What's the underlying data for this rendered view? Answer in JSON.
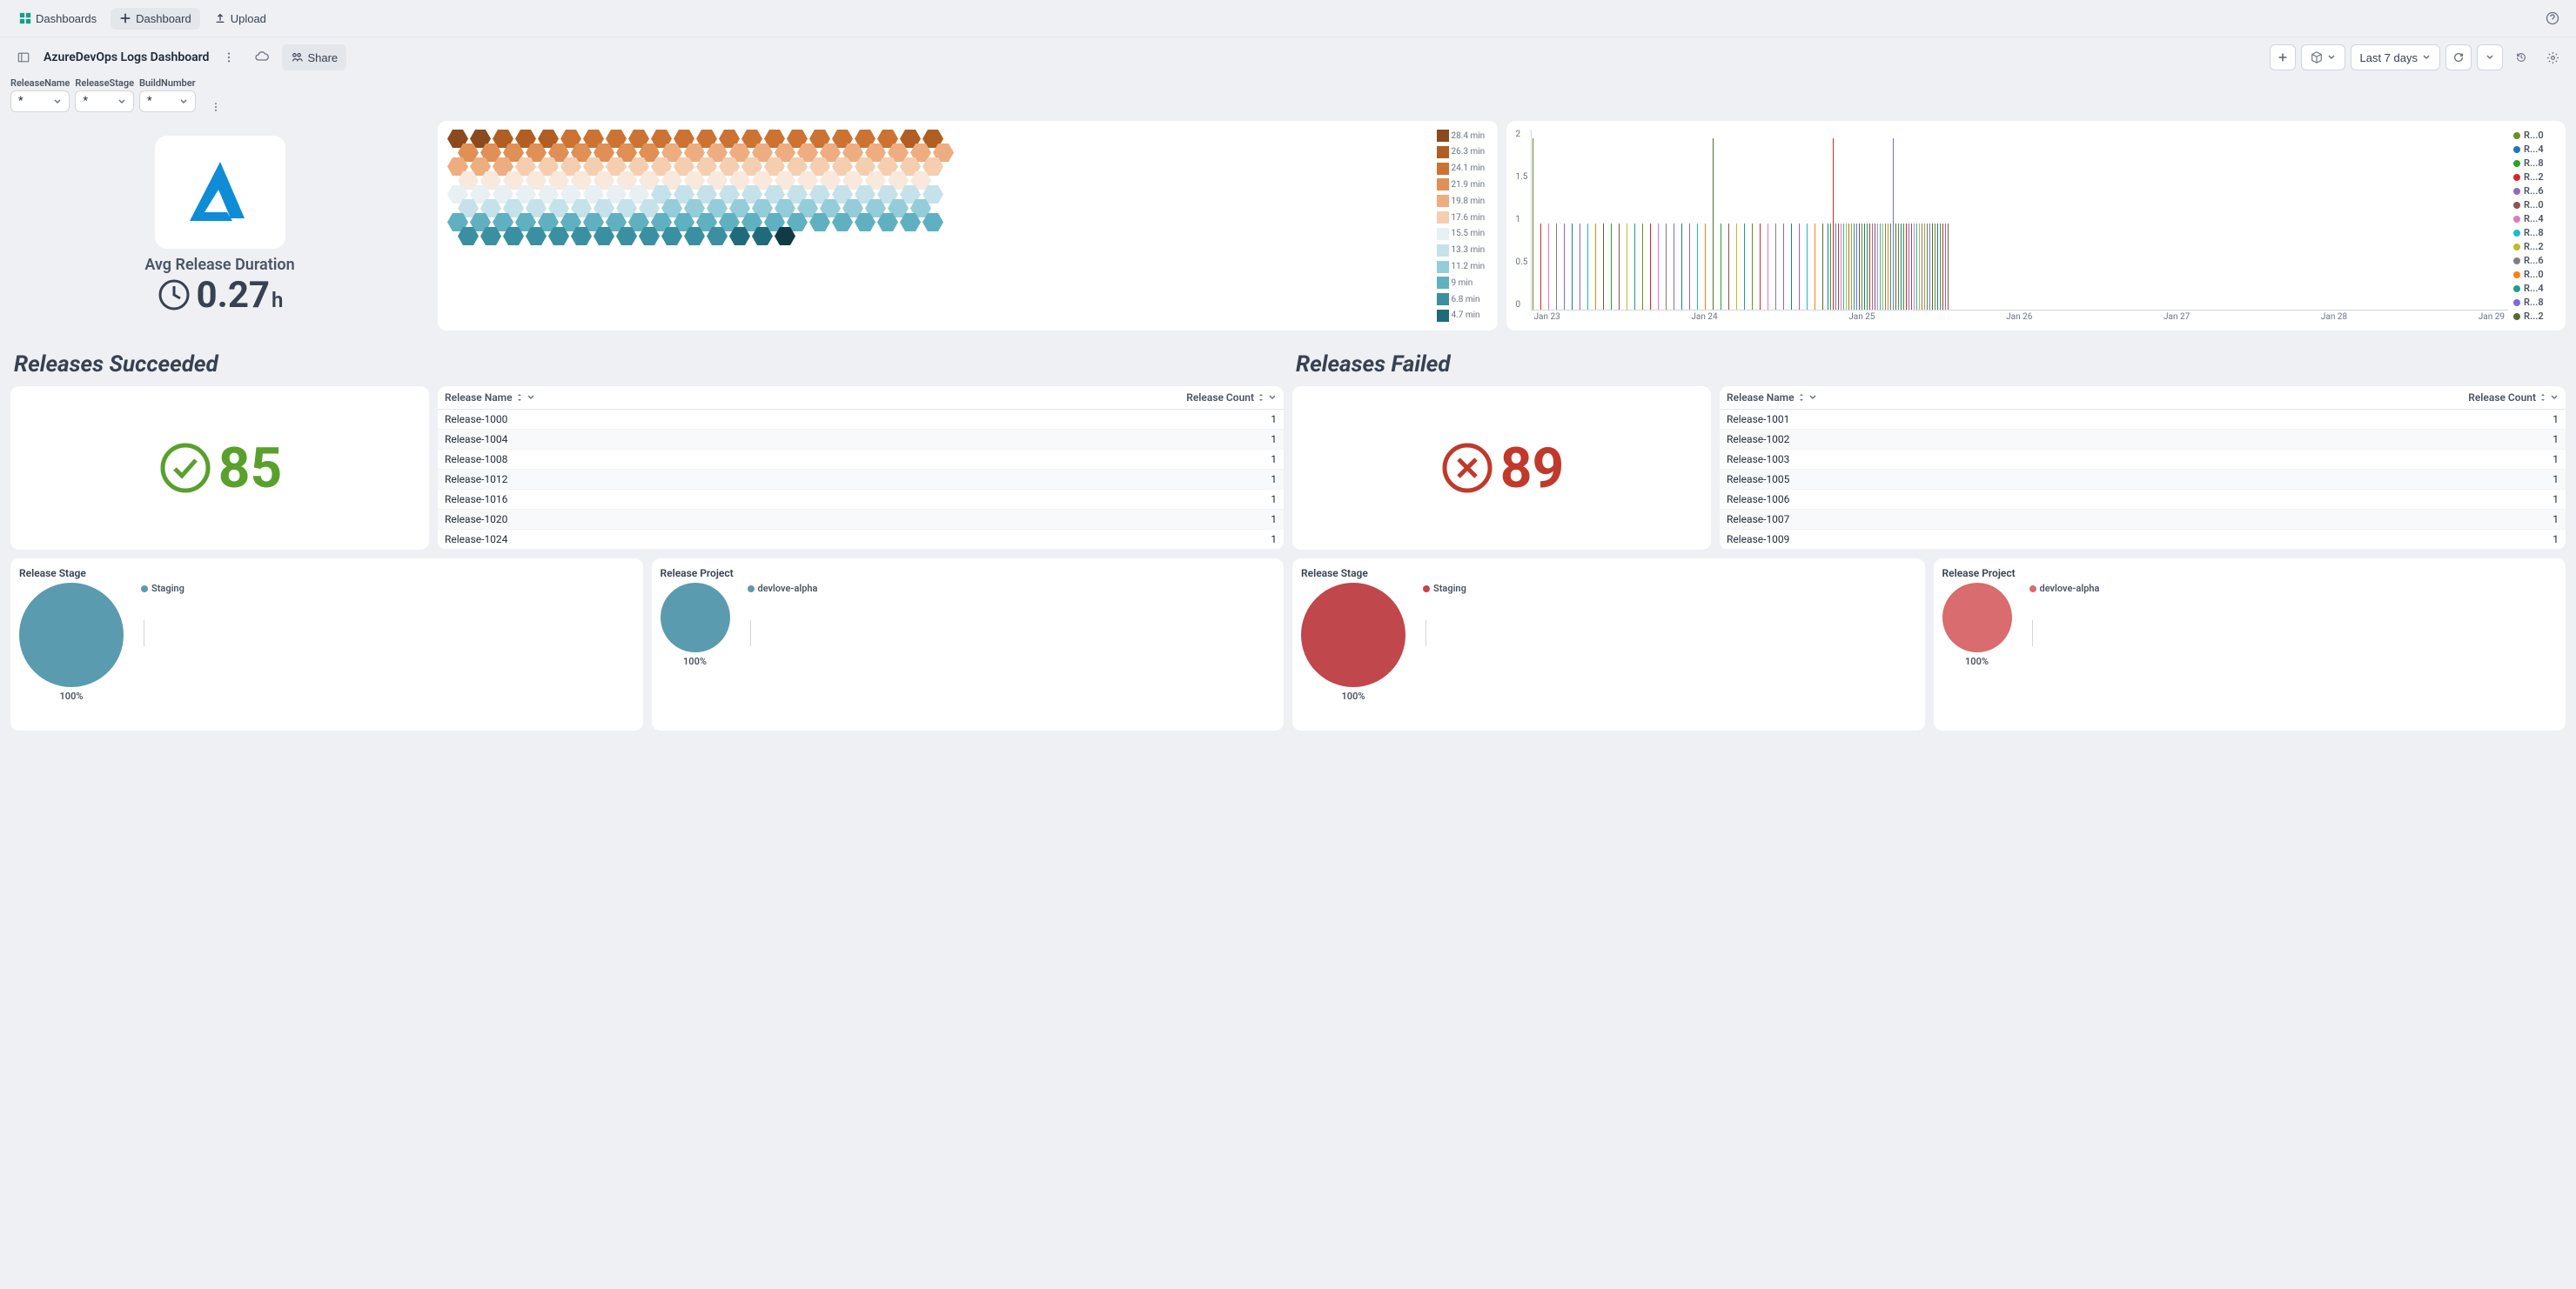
{
  "topbar": {
    "dashboards": "Dashboards",
    "addDashboard": "Dashboard",
    "upload": "Upload"
  },
  "subbar": {
    "title": "AzureDevOps Logs Dashboard",
    "share": "Share",
    "timeRange": "Last 7 days"
  },
  "filters": [
    {
      "label": "ReleaseName",
      "value": "*"
    },
    {
      "label": "ReleaseStage",
      "value": "*"
    },
    {
      "label": "BuildNumber",
      "value": "*"
    }
  ],
  "avgDuration": {
    "label": "Avg Release Duration",
    "value": "0.27",
    "unit": "h"
  },
  "hexScale": [
    {
      "c": "#8a4a1d",
      "t": "28.4 min"
    },
    {
      "c": "#b05e23",
      "t": "26.3 min"
    },
    {
      "c": "#cc7333",
      "t": "24.1 min"
    },
    {
      "c": "#e08f55",
      "t": "21.9 min"
    },
    {
      "c": "#eead80",
      "t": "19.8 min"
    },
    {
      "c": "#f5ceb0",
      "t": "17.6 min"
    },
    {
      "c": "#e8f0f4",
      "t": "15.5 min"
    },
    {
      "c": "#c5e2ea",
      "t": "13.3 min"
    },
    {
      "c": "#94cdd9",
      "t": "11.2 min"
    },
    {
      "c": "#5fb0c0",
      "t": "9 min"
    },
    {
      "c": "#3a8fa0",
      "t": "6.8 min"
    },
    {
      "c": "#1f6b7c",
      "t": "4.7 min"
    }
  ],
  "hexRows": [
    [
      "#8a4a1d",
      "#8a4a1d",
      "#b05e23",
      "#b05e23",
      "#b05e23",
      "#cc7333",
      "#cc7333",
      "#cc7333",
      "#cc7333",
      "#cc7333",
      "#cc7333",
      "#cc7333",
      "#cc7333",
      "#cc7333",
      "#cc7333",
      "#cc7333",
      "#cc7333",
      "#cc7333",
      "#cc7333",
      "#cc7333",
      "#b05e23",
      "#b05e23"
    ],
    [
      "#e08f55",
      "#e08f55",
      "#e08f55",
      "#e08f55",
      "#e08f55",
      "#e08f55",
      "#e08f55",
      "#e08f55",
      "#e08f55",
      "#eead80",
      "#eead80",
      "#eead80",
      "#eead80",
      "#eead80",
      "#eead80",
      "#eead80",
      "#eead80",
      "#eead80",
      "#eead80",
      "#eead80",
      "#eead80",
      "#eead80"
    ],
    [
      "#eead80",
      "#eead80",
      "#eead80",
      "#f5ceb0",
      "#f5ceb0",
      "#f5ceb0",
      "#f5ceb0",
      "#f5ceb0",
      "#f5ceb0",
      "#f5ceb0",
      "#f5ceb0",
      "#f5ceb0",
      "#f5ceb0",
      "#f5ceb0",
      "#f5ceb0",
      "#f5ceb0",
      "#f5ceb0",
      "#f5ceb0",
      "#f5ceb0",
      "#f5ceb0",
      "#f5ceb0",
      "#f5ceb0"
    ],
    [
      "#f8e9dc",
      "#f8e9dc",
      "#f8e9dc",
      "#f8e9dc",
      "#f8e9dc",
      "#f8e9dc",
      "#f8e9dc",
      "#f8e9dc",
      "#f8e9dc",
      "#f8e9dc",
      "#f8e9dc",
      "#f8e9dc",
      "#f8e9dc",
      "#f8e9dc",
      "#f8e9dc",
      "#f8e9dc",
      "#f8e9dc",
      "#f8e9dc",
      "#f8e9dc",
      "#f8e9dc",
      "#f8e9dc"
    ],
    [
      "#e8f0f4",
      "#e8f0f4",
      "#e8f0f4",
      "#e8f0f4",
      "#e8f0f4",
      "#e8f0f4",
      "#e8f0f4",
      "#e8f0f4",
      "#e8f0f4",
      "#c5e2ea",
      "#c5e2ea",
      "#c5e2ea",
      "#c5e2ea",
      "#c5e2ea",
      "#c5e2ea",
      "#c5e2ea",
      "#c5e2ea",
      "#c5e2ea",
      "#c5e2ea",
      "#c5e2ea",
      "#c5e2ea",
      "#c5e2ea"
    ],
    [
      "#c5e2ea",
      "#c5e2ea",
      "#c5e2ea",
      "#c5e2ea",
      "#c5e2ea",
      "#c5e2ea",
      "#c5e2ea",
      "#c5e2ea",
      "#c5e2ea",
      "#94cdd9",
      "#94cdd9",
      "#94cdd9",
      "#94cdd9",
      "#94cdd9",
      "#94cdd9",
      "#94cdd9",
      "#94cdd9",
      "#94cdd9",
      "#94cdd9",
      "#94cdd9",
      "#94cdd9"
    ],
    [
      "#5fb0c0",
      "#5fb0c0",
      "#5fb0c0",
      "#5fb0c0",
      "#5fb0c0",
      "#5fb0c0",
      "#5fb0c0",
      "#5fb0c0",
      "#5fb0c0",
      "#5fb0c0",
      "#5fb0c0",
      "#5fb0c0",
      "#5fb0c0",
      "#5fb0c0",
      "#5fb0c0",
      "#5fb0c0",
      "#5fb0c0",
      "#5fb0c0",
      "#5fb0c0",
      "#5fb0c0",
      "#5fb0c0",
      "#5fb0c0"
    ],
    [
      "#3a8fa0",
      "#3a8fa0",
      "#3a8fa0",
      "#3a8fa0",
      "#3a8fa0",
      "#3a8fa0",
      "#3a8fa0",
      "#3a8fa0",
      "#3a8fa0",
      "#3a8fa0",
      "#3a8fa0",
      "#3a8fa0",
      "#1f6b7c",
      "#1f6b7c",
      "#123a45"
    ]
  ],
  "timeseries": {
    "yticks": [
      "2",
      "1.5",
      "1",
      "0.5",
      "0"
    ],
    "xticks": [
      "Jan 23",
      "Jan 24",
      "Jan 25",
      "Jan 26",
      "Jan 27",
      "Jan 28",
      "Jan 29"
    ],
    "legend": [
      {
        "c": "#6b8e23",
        "t": "R...0"
      },
      {
        "c": "#1f77b4",
        "t": "R...4"
      },
      {
        "c": "#2ca02c",
        "t": "R...8"
      },
      {
        "c": "#d62728",
        "t": "R...2"
      },
      {
        "c": "#9467bd",
        "t": "R...6"
      },
      {
        "c": "#8c564b",
        "t": "R...0"
      },
      {
        "c": "#e377c2",
        "t": "R...4"
      },
      {
        "c": "#17becf",
        "t": "R...8"
      },
      {
        "c": "#bcbd22",
        "t": "R...2"
      },
      {
        "c": "#7f7f7f",
        "t": "R...6"
      },
      {
        "c": "#ff7f0e",
        "t": "R...0"
      },
      {
        "c": "#1f9e89",
        "t": "R...4"
      },
      {
        "c": "#7b68ee",
        "t": "R...8"
      },
      {
        "c": "#556b2f",
        "t": "R...2"
      }
    ],
    "bars": 160
  },
  "sections": {
    "succeeded": "Releases Succeeded",
    "failed": "Releases Failed"
  },
  "succeeded": {
    "count": "85",
    "color": "#5aa02c",
    "tableCols": [
      "Release Name",
      "Release Count"
    ],
    "rows": [
      [
        "Release-1000",
        "1"
      ],
      [
        "Release-1004",
        "1"
      ],
      [
        "Release-1008",
        "1"
      ],
      [
        "Release-1012",
        "1"
      ],
      [
        "Release-1016",
        "1"
      ],
      [
        "Release-1020",
        "1"
      ],
      [
        "Release-1024",
        "1"
      ]
    ]
  },
  "failed": {
    "count": "89",
    "color": "#c0392b",
    "tableCols": [
      "Release Name",
      "Release Count"
    ],
    "rows": [
      [
        "Release-1001",
        "1"
      ],
      [
        "Release-1002",
        "1"
      ],
      [
        "Release-1003",
        "1"
      ],
      [
        "Release-1005",
        "1"
      ],
      [
        "Release-1006",
        "1"
      ],
      [
        "Release-1007",
        "1"
      ],
      [
        "Release-1009",
        "1"
      ]
    ]
  },
  "pies": [
    {
      "title": "Release Stage",
      "color": "#5a9bb0",
      "size": 120,
      "legend": "Staging",
      "pct": "100%"
    },
    {
      "title": "Release Project",
      "color": "#5a9bb0",
      "size": 80,
      "legend": "devlove-alpha",
      "pct": "100%"
    },
    {
      "title": "Release Stage",
      "color": "#c0474b",
      "size": 120,
      "legend": "Staging",
      "pct": "100%"
    },
    {
      "title": "Release Project",
      "color": "#d86c6e",
      "size": 80,
      "legend": "devlove-alpha",
      "pct": "100%"
    }
  ]
}
